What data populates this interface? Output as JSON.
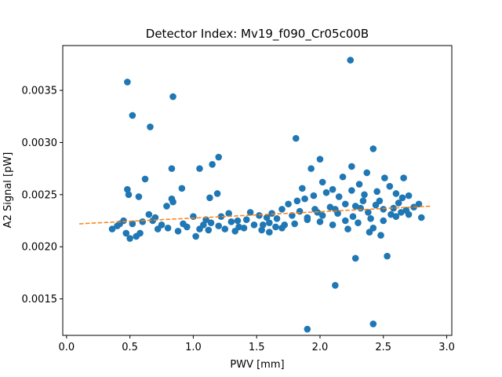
{
  "chart_data": {
    "type": "scatter",
    "title": "Detector Index: Mv19_f090_Cr05c00B",
    "xlabel": "PWV [mm]",
    "ylabel": "A2 Signal [pW]",
    "xlim": [
      -0.03,
      3.04
    ],
    "ylim": [
      0.00115,
      0.00393
    ],
    "xticks": [
      0.0,
      0.5,
      1.0,
      1.5,
      2.0,
      2.5,
      3.0
    ],
    "xtick_labels": [
      "0.0",
      "0.5",
      "1.0",
      "1.5",
      "2.0",
      "2.5",
      "3.0"
    ],
    "yticks": [
      0.0015,
      0.002,
      0.0025,
      0.003,
      0.0035
    ],
    "ytick_labels": [
      "0.0015",
      "0.0020",
      "0.0025",
      "0.0030",
      "0.0035"
    ],
    "grid": false,
    "series": [
      {
        "name": "data",
        "kind": "scatter",
        "color": "#1f77b4",
        "points": [
          [
            0.48,
            0.00358
          ],
          [
            0.52,
            0.00326
          ],
          [
            0.66,
            0.00315
          ],
          [
            0.84,
            0.00344
          ],
          [
            2.24,
            0.00379
          ],
          [
            1.81,
            0.00304
          ],
          [
            1.2,
            0.00286
          ],
          [
            1.15,
            0.00279
          ],
          [
            1.05,
            0.00275
          ],
          [
            0.83,
            0.00275
          ],
          [
            0.62,
            0.00265
          ],
          [
            0.91,
            0.00256
          ],
          [
            0.48,
            0.00255
          ],
          [
            0.49,
            0.0025
          ],
          [
            0.57,
            0.00248
          ],
          [
            0.83,
            0.00246
          ],
          [
            0.79,
            0.00239
          ],
          [
            0.84,
            0.00243
          ],
          [
            1.13,
            0.00247
          ],
          [
            1.19,
            0.00251
          ],
          [
            2.0,
            0.00284
          ],
          [
            1.93,
            0.00275
          ],
          [
            2.25,
            0.00277
          ],
          [
            2.42,
            0.00294
          ],
          [
            2.37,
            0.00271
          ],
          [
            2.51,
            0.00266
          ],
          [
            2.66,
            0.00266
          ],
          [
            2.28,
            0.00189
          ],
          [
            2.53,
            0.00191
          ],
          [
            2.12,
            0.00163
          ],
          [
            1.9,
            0.00121
          ],
          [
            2.42,
            0.00126
          ],
          [
            2.48,
            0.00211
          ],
          [
            2.42,
            0.00218
          ],
          [
            2.39,
            0.00214
          ],
          [
            2.22,
            0.00217
          ],
          [
            0.36,
            0.00217
          ],
          [
            0.4,
            0.0022
          ],
          [
            0.45,
            0.00225
          ],
          [
            0.52,
            0.00222
          ],
          [
            0.6,
            0.00224
          ],
          [
            0.65,
            0.00231
          ],
          [
            0.7,
            0.00228
          ],
          [
            0.75,
            0.00221
          ],
          [
            0.8,
            0.00218
          ],
          [
            0.88,
            0.00215
          ],
          [
            0.95,
            0.00219
          ],
          [
            1.02,
            0.0021
          ],
          [
            1.08,
            0.00221
          ],
          [
            1.14,
            0.00223
          ],
          [
            1.2,
            0.0022
          ],
          [
            1.25,
            0.00217
          ],
          [
            1.3,
            0.00224
          ],
          [
            1.36,
            0.00219
          ],
          [
            1.42,
            0.00226
          ],
          [
            1.48,
            0.00221
          ],
          [
            1.54,
            0.00216
          ],
          [
            1.6,
            0.00223
          ],
          [
            1.66,
            0.00227
          ],
          [
            1.72,
            0.00221
          ],
          [
            1.78,
            0.0023
          ],
          [
            1.84,
            0.00234
          ],
          [
            1.9,
            0.00228
          ],
          [
            1.96,
            0.00236
          ],
          [
            2.02,
            0.0023
          ],
          [
            2.08,
            0.00238
          ],
          [
            2.14,
            0.00232
          ],
          [
            2.2,
            0.00241
          ],
          [
            2.26,
            0.00229
          ],
          [
            2.32,
            0.00237
          ],
          [
            2.38,
            0.00233
          ],
          [
            2.44,
            0.0024
          ],
          [
            2.5,
            0.00236
          ],
          [
            2.56,
            0.00231
          ],
          [
            2.62,
            0.00242
          ],
          [
            2.68,
            0.00235
          ],
          [
            2.74,
            0.00238
          ],
          [
            2.8,
            0.00228
          ],
          [
            0.5,
            0.00208
          ],
          [
            0.55,
            0.0021
          ],
          [
            0.47,
            0.00213
          ],
          [
            1.0,
            0.00229
          ],
          [
            1.1,
            0.00226
          ],
          [
            1.28,
            0.00232
          ],
          [
            1.45,
            0.00233
          ],
          [
            1.52,
            0.0023
          ],
          [
            1.7,
            0.00236
          ],
          [
            1.75,
            0.00241
          ],
          [
            1.82,
            0.00244
          ],
          [
            1.88,
            0.00246
          ],
          [
            1.95,
            0.00249
          ],
          [
            2.05,
            0.00252
          ],
          [
            2.1,
            0.00255
          ],
          [
            2.15,
            0.00248
          ],
          [
            2.25,
            0.00254
          ],
          [
            2.35,
            0.0025
          ],
          [
            2.45,
            0.00253
          ],
          [
            2.55,
            0.00258
          ],
          [
            2.6,
            0.00251
          ],
          [
            2.65,
            0.00247
          ],
          [
            2.7,
            0.00249
          ],
          [
            2.78,
            0.00241
          ],
          [
            1.6,
            0.00214
          ],
          [
            1.7,
            0.00218
          ],
          [
            1.8,
            0.00222
          ],
          [
            1.9,
            0.00226
          ],
          [
            2.0,
            0.00224
          ],
          [
            2.1,
            0.00221
          ],
          [
            2.2,
            0.00225
          ],
          [
            2.3,
            0.00223
          ],
          [
            2.4,
            0.00227
          ],
          [
            2.5,
            0.00225
          ],
          [
            2.6,
            0.00229
          ],
          [
            2.7,
            0.00231
          ],
          [
            1.33,
            0.00215
          ],
          [
            1.4,
            0.00218
          ],
          [
            1.55,
            0.00221
          ],
          [
            1.65,
            0.00219
          ],
          [
            0.92,
            0.00222
          ],
          [
            1.05,
            0.00217
          ],
          [
            1.12,
            0.00216
          ],
          [
            2.18,
            0.00267
          ],
          [
            2.31,
            0.0026
          ],
          [
            2.47,
            0.00244
          ],
          [
            2.02,
            0.00262
          ],
          [
            1.86,
            0.00256
          ],
          [
            0.68,
            0.00225
          ],
          [
            0.42,
            0.00222
          ],
          [
            0.58,
            0.00213
          ],
          [
            0.72,
            0.00217
          ],
          [
            1.22,
            0.00229
          ],
          [
            1.35,
            0.00225
          ],
          [
            1.58,
            0.00228
          ],
          [
            1.62,
            0.00232
          ],
          [
            1.98,
            0.00233
          ],
          [
            2.12,
            0.00236
          ],
          [
            2.28,
            0.00239
          ],
          [
            2.34,
            0.00244
          ],
          [
            2.58,
            0.00237
          ],
          [
            2.64,
            0.00233
          ]
        ]
      },
      {
        "name": "fit",
        "kind": "line",
        "style": "dashed",
        "color": "#ff7f0e",
        "x": [
          0.1,
          2.88
        ],
        "y": [
          0.00222,
          0.00239
        ]
      }
    ]
  }
}
